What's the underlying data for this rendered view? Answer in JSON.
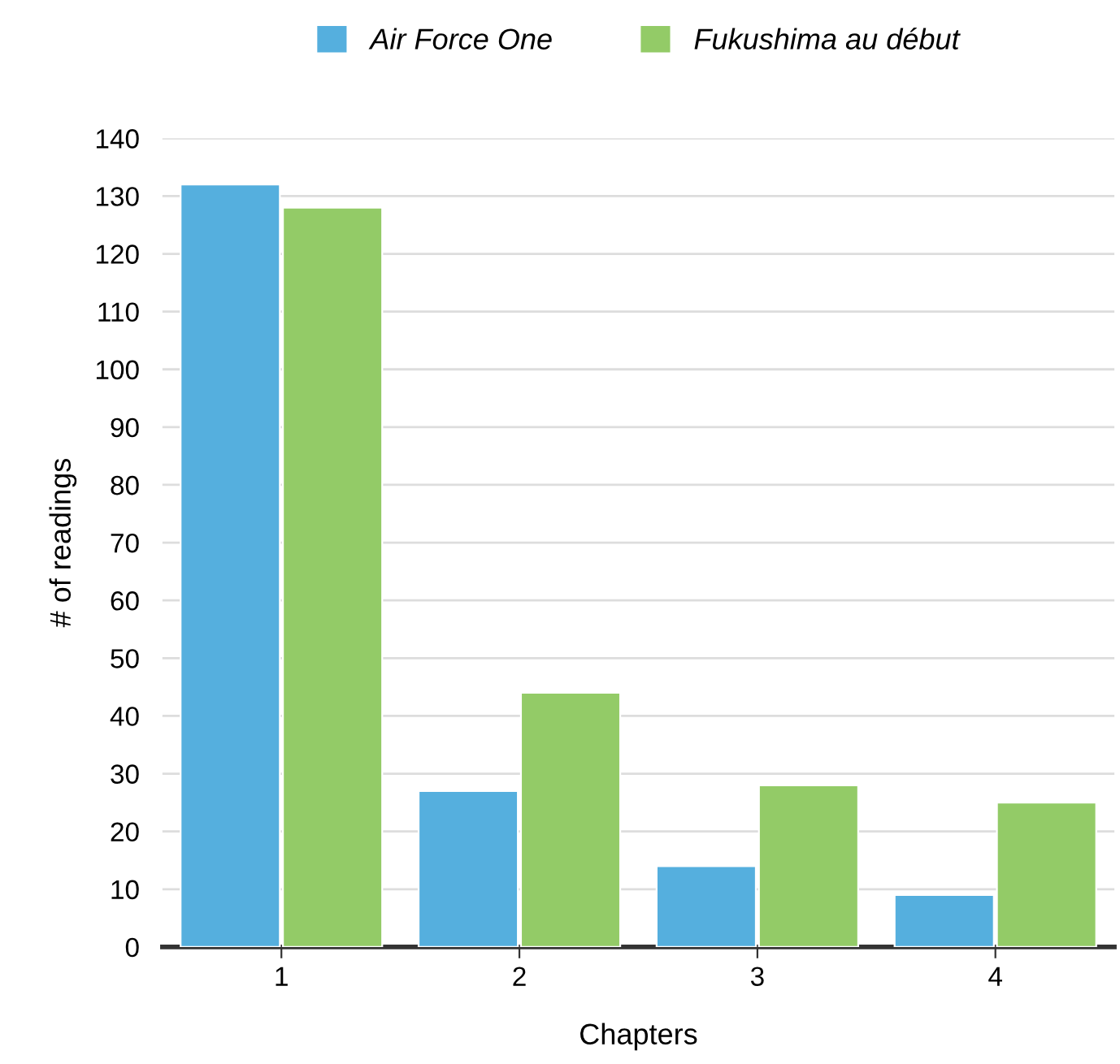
{
  "chart_data": {
    "type": "bar",
    "xlabel": "Chapters",
    "ylabel": "# of readings",
    "categories": [
      "1",
      "2",
      "3",
      "4"
    ],
    "series": [
      {
        "name": "Air Force One",
        "color": "#55afde",
        "values": [
          132,
          27,
          14,
          9
        ]
      },
      {
        "name": "Fukushima au début",
        "color": "#93cb67",
        "values": [
          128,
          44,
          28,
          25
        ]
      }
    ],
    "ylim": [
      0,
      140
    ],
    "yticks": [
      0,
      10,
      20,
      30,
      40,
      50,
      60,
      70,
      80,
      90,
      100,
      110,
      120,
      130,
      140
    ],
    "grid": "y",
    "legend": "top"
  }
}
